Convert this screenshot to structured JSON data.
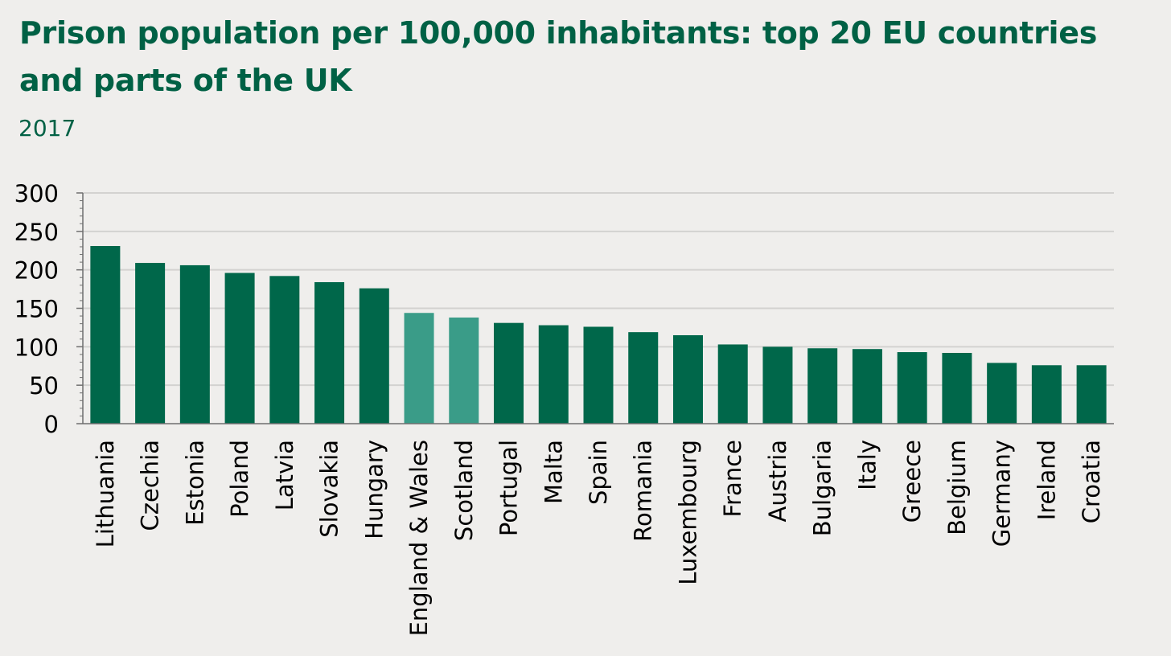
{
  "chart_data": {
    "type": "bar",
    "title": "Prison population per 100,000 inhabitants: top 20 EU countries and parts of the UK",
    "subtitle": "2017",
    "xlabel": "",
    "ylabel": "",
    "ylim": [
      0,
      300
    ],
    "yticks": [
      "0",
      "50",
      "100",
      "150",
      "200",
      "250",
      "300"
    ],
    "grid": true,
    "categories": [
      "Lithuania",
      "Czechia",
      "Estonia",
      "Poland",
      "Latvia",
      "Slovakia",
      "Hungary",
      "England & Wales",
      "Scotland",
      "Portugal",
      "Malta",
      "Spain",
      "Romania",
      "Luxembourg",
      "France",
      "Austria",
      "Bulgaria",
      "Italy",
      "Greece",
      "Belgium",
      "Germany",
      "Ireland",
      "Croatia"
    ],
    "values": [
      231,
      209,
      206,
      196,
      192,
      184,
      176,
      144,
      138,
      131,
      128,
      126,
      119,
      115,
      103,
      100,
      98,
      97,
      93,
      92,
      79,
      76,
      76
    ],
    "highlight": [
      false,
      false,
      false,
      false,
      false,
      false,
      false,
      true,
      true,
      false,
      false,
      false,
      false,
      false,
      false,
      false,
      false,
      false,
      false,
      false,
      false,
      false,
      false
    ],
    "colors": {
      "bar": "#00674a",
      "highlight": "#3a9c88",
      "grid": "#d3d2d0",
      "axis": "#6f6f6f",
      "title": "#006145"
    }
  }
}
